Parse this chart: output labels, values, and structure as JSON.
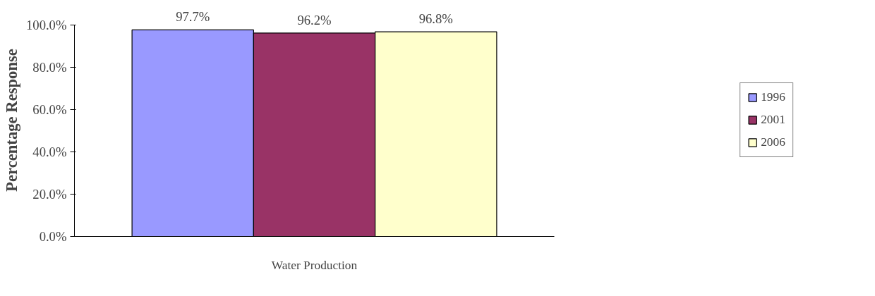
{
  "chart_data": {
    "type": "bar",
    "ylabel": "Percentage Response",
    "categories": [
      "Water Production"
    ],
    "series": [
      {
        "name": "1996",
        "color": "#9999ff",
        "values": [
          97.7
        ],
        "value_labels": [
          "97.7%"
        ]
      },
      {
        "name": "2001",
        "color": "#993366",
        "values": [
          96.2
        ],
        "value_labels": [
          "96.2%"
        ]
      },
      {
        "name": "2006",
        "color": "#ffffcc",
        "values": [
          96.8
        ],
        "value_labels": [
          "96.8%"
        ]
      }
    ],
    "ylim": [
      0,
      100
    ],
    "yticks": [
      {
        "value": 0,
        "label": "0.0%"
      },
      {
        "value": 20,
        "label": "20.0%"
      },
      {
        "value": 40,
        "label": "40.0%"
      },
      {
        "value": 60,
        "label": "60.0%"
      },
      {
        "value": 80,
        "label": "80.0%"
      },
      {
        "value": 100,
        "label": "100.0%"
      }
    ],
    "grid": false,
    "legend": "right"
  }
}
